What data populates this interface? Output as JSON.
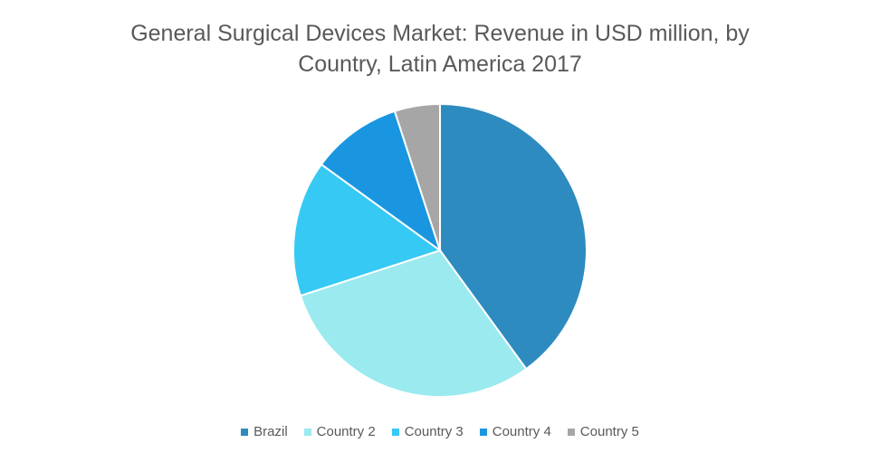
{
  "chart_data": {
    "type": "pie",
    "title": "General Surgical Devices Market: Revenue in USD million, by Country, Latin America 2017",
    "categories": [
      "Brazil",
      "Country 2",
      "Country 3",
      "Country 4",
      "Country 5"
    ],
    "values": [
      40,
      30,
      15,
      10,
      5
    ],
    "colors": [
      "#2e8bc0",
      "#9aeaf0",
      "#36c9f4",
      "#1a96e0",
      "#a6a6a6"
    ],
    "legend": "bottom"
  }
}
